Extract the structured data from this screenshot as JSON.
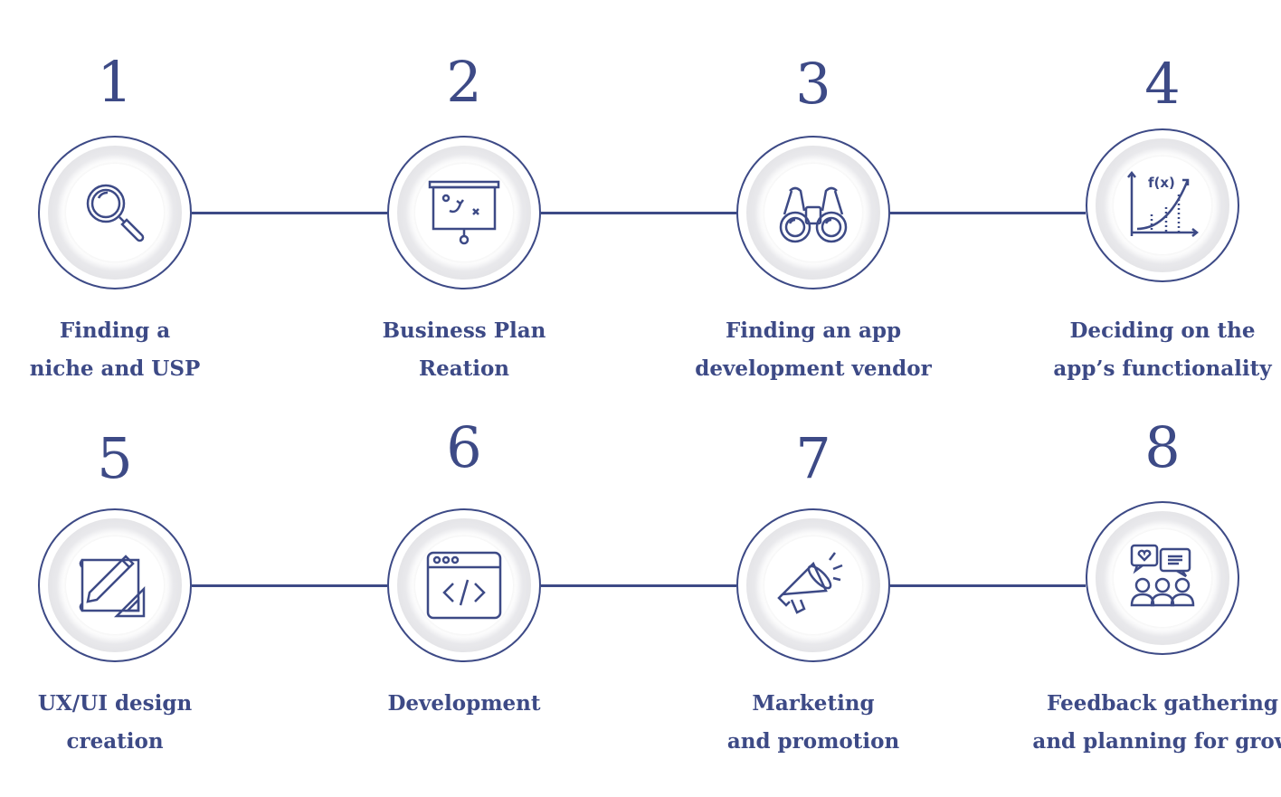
{
  "steps": [
    {
      "number": "1",
      "label_line1": "Finding a",
      "label_line2": "niche and USP",
      "icon": "magnifier-icon"
    },
    {
      "number": "2",
      "label_line1": "Business Plan",
      "label_line2": "Reation",
      "icon": "presentation-board-icon"
    },
    {
      "number": "3",
      "label_line1": "Finding an app",
      "label_line2": "development vendor",
      "icon": "binoculars-icon"
    },
    {
      "number": "4",
      "label_line1": "Deciding on the",
      "label_line2": "app’s functionality",
      "icon": "function-graph-icon"
    },
    {
      "number": "5",
      "label_line1": "UX/UI design",
      "label_line2": "creation",
      "icon": "design-tools-icon"
    },
    {
      "number": "6",
      "label_line1": "Development",
      "label_line2": "",
      "icon": "code-window-icon"
    },
    {
      "number": "7",
      "label_line1": "Marketing",
      "label_line2": "and promotion",
      "icon": "megaphone-icon"
    },
    {
      "number": "8",
      "label_line1": "Feedback gathering",
      "label_line2": "and planning for grow",
      "icon": "feedback-group-icon"
    }
  ],
  "colors": {
    "accent": "#3d4a86",
    "ring": "#e0e0e4",
    "background": "#ffffff"
  }
}
